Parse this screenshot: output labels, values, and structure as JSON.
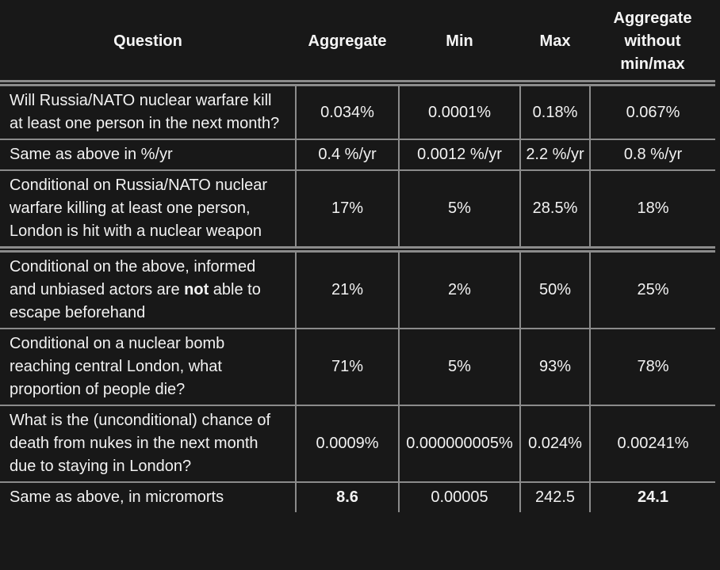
{
  "table": {
    "columns": [
      {
        "label": "Question"
      },
      {
        "label": "Aggregate"
      },
      {
        "label": "Min"
      },
      {
        "label": "Max"
      },
      {
        "label": "Aggregate without min/max"
      }
    ],
    "rows": [
      {
        "question": [
          {
            "text": "Will Russia/NATO nuclear warfare kill at least one person in the next month?",
            "bold": false
          }
        ],
        "values": [
          {
            "text": "0.034%",
            "bold": false
          },
          {
            "text": "0.0001%",
            "bold": false
          },
          {
            "text": "0.18%",
            "bold": false
          },
          {
            "text": "0.067%",
            "bold": false
          }
        ]
      },
      {
        "question": [
          {
            "text": "Same as above in %/yr",
            "bold": false
          }
        ],
        "values": [
          {
            "text": "0.4 %/yr",
            "bold": false
          },
          {
            "text": "0.0012 %/yr",
            "bold": false
          },
          {
            "text": "2.2 %/yr",
            "bold": false
          },
          {
            "text": "0.8 %/yr",
            "bold": false
          }
        ]
      },
      {
        "question": [
          {
            "text": "Conditional on Russia/NATO nuclear warfare killing at least one person, London is hit with a nuclear weapon",
            "bold": false
          }
        ],
        "values": [
          {
            "text": "17%",
            "bold": false
          },
          {
            "text": "5%",
            "bold": false
          },
          {
            "text": "28.5%",
            "bold": false
          },
          {
            "text": "18%",
            "bold": false
          }
        ]
      },
      {
        "question": [
          {
            "text": "Conditional on the above, informed and unbiased actors are ",
            "bold": false
          },
          {
            "text": "not",
            "bold": true
          },
          {
            "text": " able to escape beforehand",
            "bold": false
          }
        ],
        "values": [
          {
            "text": "21%",
            "bold": false
          },
          {
            "text": "2%",
            "bold": false
          },
          {
            "text": "50%",
            "bold": false
          },
          {
            "text": "25%",
            "bold": false
          }
        ]
      },
      {
        "question": [
          {
            "text": "Conditional on a nuclear bomb reaching central London, what proportion of people die?",
            "bold": false
          }
        ],
        "values": [
          {
            "text": "71%",
            "bold": false
          },
          {
            "text": "5%",
            "bold": false
          },
          {
            "text": "93%",
            "bold": false
          },
          {
            "text": "78%",
            "bold": false
          }
        ]
      },
      {
        "question": [
          {
            "text": "What is the (unconditional) chance of death from nukes in the next month due to staying in London?",
            "bold": false
          }
        ],
        "values": [
          {
            "text": "0.0009%",
            "bold": false
          },
          {
            "text": "0.000000005%",
            "bold": false
          },
          {
            "text": "0.024%",
            "bold": false
          },
          {
            "text": "0.00241%",
            "bold": false
          }
        ]
      },
      {
        "question": [
          {
            "text": "Same as above, in micromorts",
            "bold": false
          }
        ],
        "values": [
          {
            "text": "8.6",
            "bold": true
          },
          {
            "text": "0.00005",
            "bold": false
          },
          {
            "text": "242.5",
            "bold": false
          },
          {
            "text": "24.1",
            "bold": true
          }
        ]
      }
    ]
  }
}
